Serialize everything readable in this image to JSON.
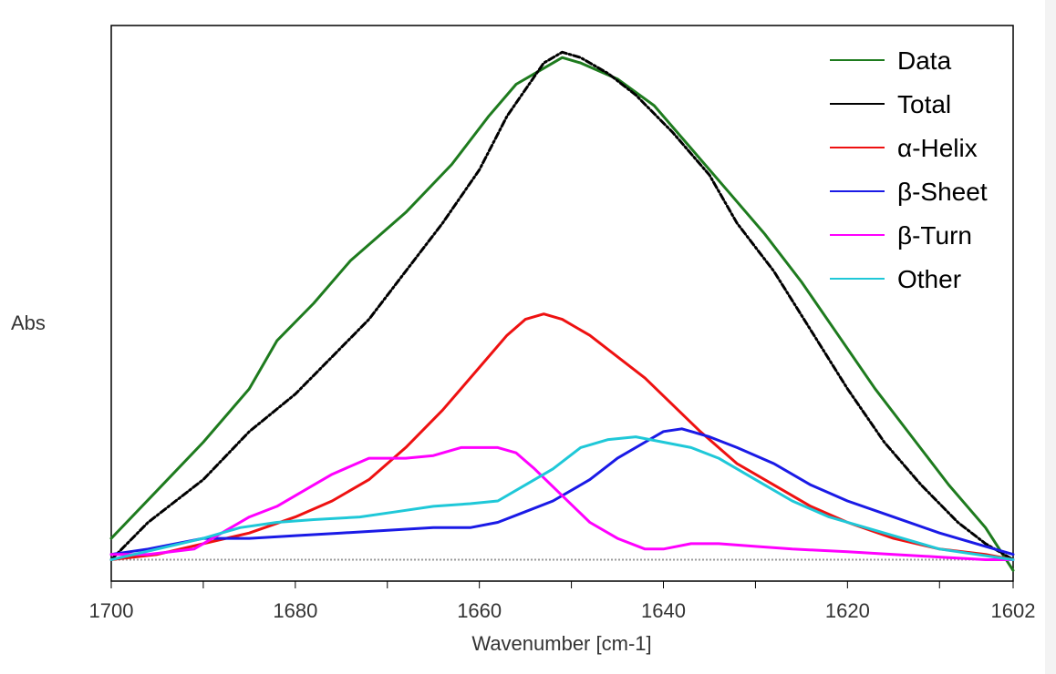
{
  "chart_data": {
    "type": "line",
    "title": "",
    "xlabel": "Wavenumber [cm-1]",
    "ylabel": "Abs",
    "xlim": [
      1700,
      1602
    ],
    "x_reversed": true,
    "ylim": [
      -0.04,
      1.0
    ],
    "x_ticks": [
      1700,
      1690,
      1680,
      1670,
      1660,
      1650,
      1640,
      1630,
      1620,
      1610,
      1602
    ],
    "x_tick_labels": [
      "1700",
      "1680",
      "1660",
      "1640",
      "1620",
      "1602"
    ],
    "grid": false,
    "legend_position": "top-right",
    "baseline": 0,
    "series": [
      {
        "name": "Data",
        "color": "#1e7b1e",
        "dash": "solid",
        "points": [
          [
            1700,
            0.04
          ],
          [
            1695,
            0.13
          ],
          [
            1690,
            0.22
          ],
          [
            1685,
            0.32
          ],
          [
            1682,
            0.41
          ],
          [
            1678,
            0.48
          ],
          [
            1674,
            0.56
          ],
          [
            1668,
            0.65
          ],
          [
            1663,
            0.74
          ],
          [
            1659,
            0.83
          ],
          [
            1656,
            0.89
          ],
          [
            1653,
            0.92
          ],
          [
            1651,
            0.94
          ],
          [
            1649,
            0.93
          ],
          [
            1645,
            0.9
          ],
          [
            1641,
            0.85
          ],
          [
            1637,
            0.77
          ],
          [
            1633,
            0.69
          ],
          [
            1629,
            0.61
          ],
          [
            1625,
            0.52
          ],
          [
            1621,
            0.42
          ],
          [
            1617,
            0.32
          ],
          [
            1613,
            0.23
          ],
          [
            1609,
            0.14
          ],
          [
            1605,
            0.06
          ],
          [
            1602,
            -0.02
          ]
        ]
      },
      {
        "name": "Total",
        "color": "#000000",
        "dash": "dashdot",
        "points": [
          [
            1700,
            0.0
          ],
          [
            1696,
            0.07
          ],
          [
            1690,
            0.15
          ],
          [
            1685,
            0.24
          ],
          [
            1680,
            0.31
          ],
          [
            1676,
            0.38
          ],
          [
            1672,
            0.45
          ],
          [
            1668,
            0.54
          ],
          [
            1664,
            0.63
          ],
          [
            1660,
            0.73
          ],
          [
            1657,
            0.83
          ],
          [
            1655,
            0.88
          ],
          [
            1653,
            0.93
          ],
          [
            1651,
            0.95
          ],
          [
            1649,
            0.94
          ],
          [
            1646,
            0.91
          ],
          [
            1643,
            0.87
          ],
          [
            1639,
            0.8
          ],
          [
            1635,
            0.72
          ],
          [
            1632,
            0.63
          ],
          [
            1628,
            0.54
          ],
          [
            1624,
            0.43
          ],
          [
            1620,
            0.32
          ],
          [
            1616,
            0.22
          ],
          [
            1612,
            0.14
          ],
          [
            1608,
            0.07
          ],
          [
            1605,
            0.03
          ],
          [
            1602,
            0.0
          ]
        ]
      },
      {
        "name": "α-Helix",
        "color": "#ee1111",
        "dash": "solid",
        "points": [
          [
            1700,
            0.0
          ],
          [
            1695,
            0.01
          ],
          [
            1690,
            0.03
          ],
          [
            1685,
            0.05
          ],
          [
            1680,
            0.08
          ],
          [
            1676,
            0.11
          ],
          [
            1672,
            0.15
          ],
          [
            1668,
            0.21
          ],
          [
            1664,
            0.28
          ],
          [
            1660,
            0.36
          ],
          [
            1657,
            0.42
          ],
          [
            1655,
            0.45
          ],
          [
            1653,
            0.46
          ],
          [
            1651,
            0.45
          ],
          [
            1648,
            0.42
          ],
          [
            1645,
            0.38
          ],
          [
            1642,
            0.34
          ],
          [
            1639,
            0.29
          ],
          [
            1636,
            0.24
          ],
          [
            1632,
            0.18
          ],
          [
            1628,
            0.14
          ],
          [
            1624,
            0.1
          ],
          [
            1620,
            0.07
          ],
          [
            1615,
            0.04
          ],
          [
            1610,
            0.02
          ],
          [
            1605,
            0.01
          ],
          [
            1602,
            0.0
          ]
        ]
      },
      {
        "name": "β-Sheet",
        "color": "#1a1ae6",
        "dash": "solid",
        "points": [
          [
            1700,
            0.01
          ],
          [
            1696,
            0.02
          ],
          [
            1690,
            0.04
          ],
          [
            1685,
            0.04
          ],
          [
            1680,
            0.045
          ],
          [
            1675,
            0.05
          ],
          [
            1670,
            0.055
          ],
          [
            1665,
            0.06
          ],
          [
            1661,
            0.06
          ],
          [
            1658,
            0.07
          ],
          [
            1655,
            0.09
          ],
          [
            1652,
            0.11
          ],
          [
            1648,
            0.15
          ],
          [
            1645,
            0.19
          ],
          [
            1642,
            0.22
          ],
          [
            1640,
            0.24
          ],
          [
            1638,
            0.245
          ],
          [
            1635,
            0.23
          ],
          [
            1632,
            0.21
          ],
          [
            1628,
            0.18
          ],
          [
            1624,
            0.14
          ],
          [
            1620,
            0.11
          ],
          [
            1615,
            0.08
          ],
          [
            1610,
            0.05
          ],
          [
            1605,
            0.025
          ],
          [
            1602,
            0.01
          ]
        ]
      },
      {
        "name": "β-Turn",
        "color": "#ff00ff",
        "dash": "solid",
        "points": [
          [
            1700,
            0.01
          ],
          [
            1696,
            0.01
          ],
          [
            1691,
            0.02
          ],
          [
            1688,
            0.05
          ],
          [
            1685,
            0.08
          ],
          [
            1682,
            0.1
          ],
          [
            1679,
            0.13
          ],
          [
            1676,
            0.16
          ],
          [
            1672,
            0.19
          ],
          [
            1668,
            0.19
          ],
          [
            1665,
            0.195
          ],
          [
            1662,
            0.21
          ],
          [
            1658,
            0.21
          ],
          [
            1656,
            0.2
          ],
          [
            1654,
            0.17
          ],
          [
            1651,
            0.12
          ],
          [
            1648,
            0.07
          ],
          [
            1645,
            0.04
          ],
          [
            1642,
            0.02
          ],
          [
            1640,
            0.02
          ],
          [
            1637,
            0.03
          ],
          [
            1634,
            0.03
          ],
          [
            1630,
            0.025
          ],
          [
            1626,
            0.02
          ],
          [
            1620,
            0.015
          ],
          [
            1615,
            0.01
          ],
          [
            1610,
            0.005
          ],
          [
            1605,
            0.0
          ],
          [
            1602,
            0.0
          ]
        ]
      },
      {
        "name": "Other",
        "color": "#1fc8d8",
        "dash": "solid",
        "points": [
          [
            1700,
            0.0
          ],
          [
            1695,
            0.02
          ],
          [
            1690,
            0.04
          ],
          [
            1686,
            0.06
          ],
          [
            1682,
            0.07
          ],
          [
            1678,
            0.075
          ],
          [
            1673,
            0.08
          ],
          [
            1669,
            0.09
          ],
          [
            1665,
            0.1
          ],
          [
            1661,
            0.105
          ],
          [
            1658,
            0.11
          ],
          [
            1655,
            0.14
          ],
          [
            1652,
            0.17
          ],
          [
            1649,
            0.21
          ],
          [
            1646,
            0.225
          ],
          [
            1643,
            0.23
          ],
          [
            1640,
            0.22
          ],
          [
            1637,
            0.21
          ],
          [
            1634,
            0.19
          ],
          [
            1630,
            0.15
          ],
          [
            1626,
            0.11
          ],
          [
            1622,
            0.08
          ],
          [
            1618,
            0.06
          ],
          [
            1614,
            0.04
          ],
          [
            1610,
            0.02
          ],
          [
            1606,
            0.01
          ],
          [
            1602,
            0.0
          ]
        ]
      }
    ]
  }
}
